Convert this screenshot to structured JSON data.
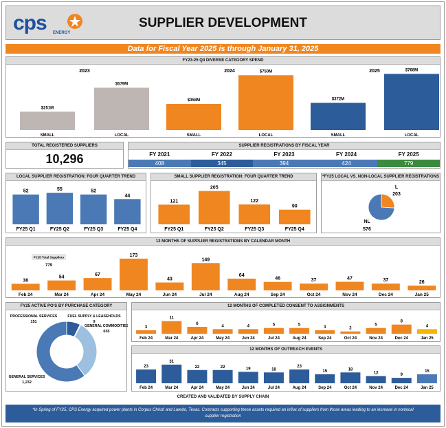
{
  "header": {
    "logo_text": "cps",
    "logo_sub": "ENERGY",
    "title": "SUPPLIER DEVELOPMENT"
  },
  "banner": "Data for Fiscal Year 2025 is through January 31, 2025",
  "colors": {
    "orange": "#f0861f",
    "grey_bar": "#bdb6b2",
    "blue": "#4a79b5",
    "navy": "#2c5c9a",
    "green": "#3b8a3d",
    "light_blue": "#9dbfe0",
    "yellow": "#f5b400"
  },
  "total_registered": {
    "title": "TOTAL REGISTERED SUPPLIERS",
    "value": "10,296"
  },
  "fy_registrations": {
    "title": "SUPPLIER REGISTRATIONS BY FISCAL YEAR",
    "years": [
      "FY 2021",
      "FY 2022",
      "FY 2023",
      "FY 2024",
      "FY 2025"
    ],
    "values": [
      "408",
      "345",
      "394",
      "424",
      "779"
    ]
  },
  "footer": "CREATED AND VALIDATED BY SUPPLY CHAIN",
  "footnote": "*In Spring of FY25, CPS Energy acquired power plants in Corpus Christi and Laredo, Texas. Contracts supporting these assets required an influx of suppliers from those areas leading to an increase in nonlocal supplier registration",
  "chart_data": [
    {
      "id": "diverse",
      "type": "bar",
      "title": "FY23-25 Q4 DIVERSE CATEGORY SPEND",
      "groups": [
        "2023",
        "2024",
        "2025"
      ],
      "categories": [
        "SMALL",
        "LOCAL",
        "SMALL",
        "LOCAL",
        "SMALL",
        "LOCAL"
      ],
      "values": [
        251,
        579,
        358,
        750,
        372,
        768
      ],
      "labels": [
        "$251M",
        "$579M",
        "$358M",
        "$750M",
        "$372M",
        "$768M"
      ],
      "ylim": [
        0,
        800
      ]
    },
    {
      "id": "local_q",
      "type": "bar",
      "title": "LOCAL SUPPLIER REGISTRATION: FOUR QUARTER TREND",
      "categories": [
        "FY25 Q1",
        "FY25 Q2",
        "FY25 Q3",
        "FY25 Q4"
      ],
      "values": [
        52,
        55,
        52,
        44
      ],
      "ylim": [
        0,
        60
      ]
    },
    {
      "id": "small_q",
      "type": "bar",
      "title": "SMALL SUPPLIER REGISTRATION: FOUR QUARTER TREND",
      "categories": [
        "FY25 Q1",
        "FY25 Q2",
        "FY25 Q3",
        "FY25 Q4"
      ],
      "values": [
        121,
        205,
        122,
        90
      ],
      "ylim": [
        0,
        220
      ]
    },
    {
      "id": "local_pie",
      "type": "pie",
      "title": "*FY25 LOCAL VS. NON-LOCAL SUPPLIER REGISTRATIONS",
      "slices": [
        {
          "name": "L",
          "value": 203
        },
        {
          "name": "NL",
          "value": 576
        }
      ]
    },
    {
      "id": "monthly",
      "type": "bar",
      "title": "12 MONTHS OF  SUPPLIER REGISTRATIONS BY CALENDAR MONTH",
      "categories": [
        "Feb 24",
        "Mar 24",
        "Apr 24",
        "May 24",
        "Jun 24",
        "Jul 24",
        "Aug 24",
        "Sep 24",
        "Oct 24",
        "Nov 24",
        "Dec 24",
        "Jan 25"
      ],
      "values": [
        36,
        54,
        67,
        173,
        43,
        149,
        64,
        46,
        37,
        47,
        37,
        26
      ],
      "annotation": {
        "label": "FY25 Total Suppliers",
        "value": "779"
      },
      "ylim": [
        0,
        180
      ]
    },
    {
      "id": "po_donut",
      "type": "pie",
      "title": "FY25 ACTIVE PO'S BY PURCHASE CATEGORY",
      "slices": [
        {
          "name": "PROFESSIONAL SERVICES",
          "value": 151,
          "label": "151"
        },
        {
          "name": "FUEL SUPPLY & LEASEHOLDS",
          "value": 9,
          "label": "9"
        },
        {
          "name": "GENERAL COMMODITIES",
          "value": 655,
          "label": "655"
        },
        {
          "name": "GENERAL SERVICES",
          "value": 1232,
          "label": "1,232"
        }
      ]
    },
    {
      "id": "consent",
      "type": "bar",
      "title": "12 MONTHS OF COMPLETED CONSENT TO ASSIGNMENTS",
      "categories": [
        "Feb 24",
        "Mar 24",
        "Apr 24",
        "May 24",
        "Jun 24",
        "Jul 24",
        "Aug 24",
        "Sep 24",
        "Oct 24",
        "Nov 24",
        "Dec 24",
        "Jan 25"
      ],
      "values": [
        3,
        11,
        6,
        4,
        4,
        5,
        5,
        3,
        2,
        5,
        8,
        4
      ],
      "ylim": [
        0,
        12
      ]
    },
    {
      "id": "outreach",
      "type": "bar",
      "title": "12 MONTHS OF OUTREACH EVENTS",
      "categories": [
        "Feb 24",
        "Mar 24",
        "Apr 24",
        "May 24",
        "Jun 24",
        "Jul 24",
        "Aug 24",
        "Sep 24",
        "Oct 24",
        "Nov 24",
        "Dec 24",
        "Jan 25"
      ],
      "values": [
        23,
        31,
        22,
        22,
        19,
        18,
        23,
        15,
        18,
        12,
        9,
        15
      ],
      "ylim": [
        0,
        32
      ]
    }
  ]
}
